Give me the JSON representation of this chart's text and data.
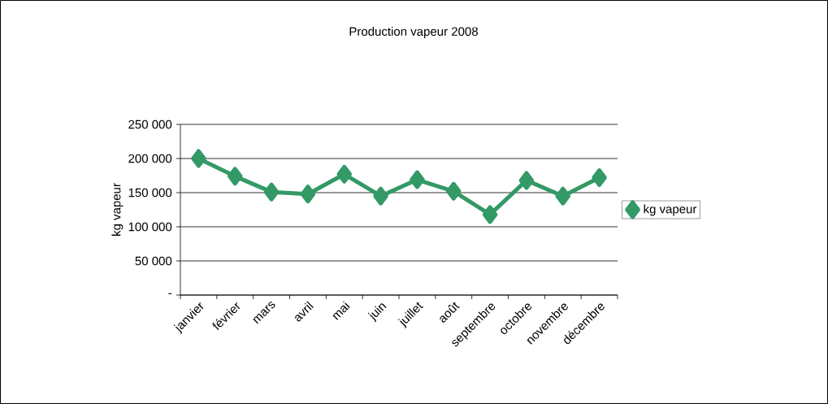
{
  "chart_data": {
    "type": "line",
    "title": "Production vapeur 2008",
    "ylabel": "kg vapeur",
    "categories": [
      "janvier",
      "février",
      "mars",
      "avril",
      "mai",
      "juin",
      "juillet",
      "août",
      "septembre",
      "octobre",
      "novembre",
      "décembre"
    ],
    "series": [
      {
        "name": "kg vapeur",
        "color": "#339966",
        "values": [
          200000,
          174000,
          151000,
          148000,
          177000,
          145000,
          169000,
          152000,
          118000,
          168000,
          145000,
          172000
        ]
      }
    ],
    "ylim": [
      0,
      250000
    ],
    "yticks": [
      {
        "value": 0,
        "label": "-"
      },
      {
        "value": 50000,
        "label": "50 000"
      },
      {
        "value": 100000,
        "label": "100 000"
      },
      {
        "value": 150000,
        "label": "150 000"
      },
      {
        "value": 200000,
        "label": "200 000"
      },
      {
        "value": 250000,
        "label": "250 000"
      }
    ],
    "grid": "y",
    "legend": "right",
    "marker": "diamond",
    "line_style": "solid"
  }
}
